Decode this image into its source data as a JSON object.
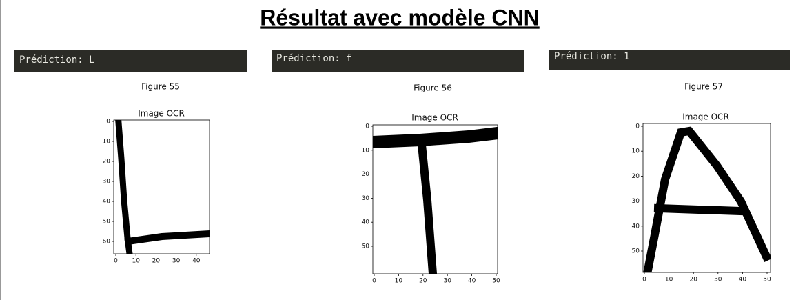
{
  "title": "Résultat  avec modèle CNN",
  "figures": [
    {
      "prediction": "Prédiction: L",
      "caption": "Figure 55",
      "plot_title": "Image OCR",
      "xticks": [
        0,
        10,
        20,
        30,
        40
      ],
      "yticks": [
        0,
        10,
        20,
        30,
        40,
        50,
        60
      ]
    },
    {
      "prediction": "Prédiction: f",
      "caption": "Figure 56",
      "plot_title": "Image OCR",
      "xticks": [
        0,
        10,
        20,
        30,
        40,
        50
      ],
      "yticks": [
        0,
        10,
        20,
        30,
        40,
        50
      ]
    },
    {
      "prediction": "Prédiction: 1",
      "caption": "Figure 57",
      "plot_title": "Image OCR",
      "xticks": [
        0,
        10,
        20,
        30,
        40,
        50
      ],
      "yticks": [
        0,
        10,
        20,
        30,
        40,
        50
      ]
    }
  ]
}
